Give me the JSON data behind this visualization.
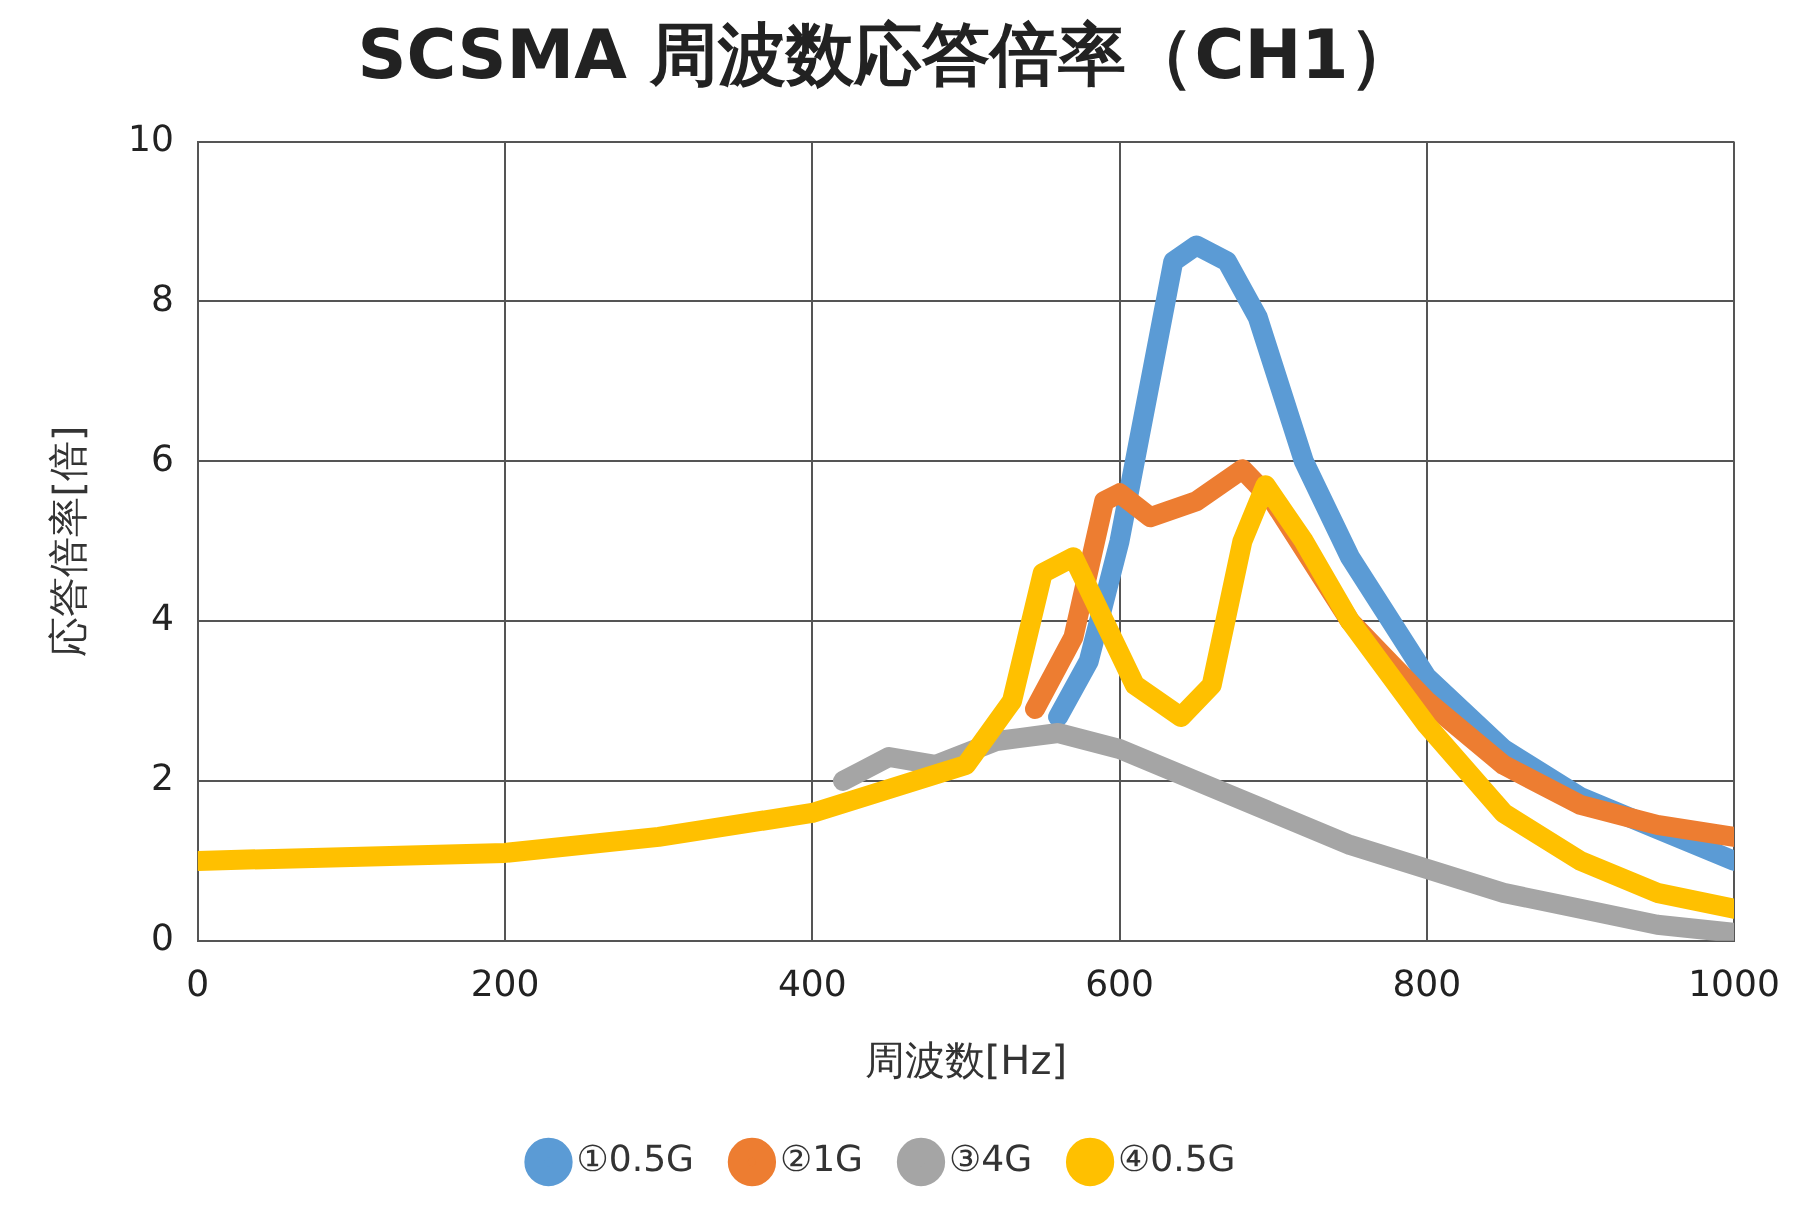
{
  "chart_data": {
    "type": "line",
    "title": "SCSMA 周波数応答倍率（CH1）",
    "xlabel": "周波数[Hz]",
    "ylabel": "応答倍率[倍]",
    "xlim": [
      0,
      1000
    ],
    "xticks": [
      0,
      200,
      400,
      600,
      800,
      1000
    ],
    "ylim": [
      0,
      10
    ],
    "yticks": [
      0,
      2,
      4,
      6,
      8,
      10
    ],
    "grid": true,
    "legend": "bottom",
    "marker": "none",
    "line_style": "solid",
    "series": [
      {
        "name": "①0.5G",
        "color": "#5b9bd5",
        "x": [
          560,
          580,
          600,
          620,
          635,
          650,
          670,
          690,
          720,
          750,
          800,
          850,
          900,
          950,
          1000
        ],
        "values": [
          2.8,
          3.5,
          5,
          7,
          8.5,
          8.7,
          8.5,
          7.8,
          6,
          4.8,
          3.3,
          2.4,
          1.8,
          1.4,
          1.0
        ]
      },
      {
        "name": "②1G",
        "color": "#ed7d31",
        "x": [
          545,
          570,
          590,
          600,
          620,
          650,
          680,
          700,
          750,
          800,
          850,
          900,
          950,
          1000
        ],
        "values": [
          2.9,
          3.8,
          5.5,
          5.6,
          5.3,
          5.5,
          5.9,
          5.5,
          4,
          3,
          2.2,
          1.7,
          1.45,
          1.3
        ]
      },
      {
        "name": "③4G",
        "color": "#a5a5a5",
        "x": [
          420,
          450,
          480,
          520,
          560,
          600,
          650,
          700,
          750,
          800,
          850,
          900,
          950,
          1000
        ],
        "values": [
          2,
          2.3,
          2.2,
          2.5,
          2.6,
          2.4,
          2,
          1.6,
          1.2,
          0.9,
          0.6,
          0.4,
          0.2,
          0.1
        ]
      },
      {
        "name": "④0.5G",
        "color": "#ffc000",
        "x": [
          0,
          100,
          200,
          300,
          400,
          500,
          530,
          550,
          570,
          590,
          610,
          640,
          660,
          680,
          695,
          720,
          750,
          800,
          850,
          900,
          950,
          1000
        ],
        "values": [
          1,
          1.05,
          1.1,
          1.3,
          1.6,
          2.2,
          3,
          4.6,
          4.8,
          4,
          3.2,
          2.8,
          3.2,
          5,
          5.7,
          5,
          4,
          2.7,
          1.6,
          1,
          0.6,
          0.4
        ]
      }
    ]
  }
}
